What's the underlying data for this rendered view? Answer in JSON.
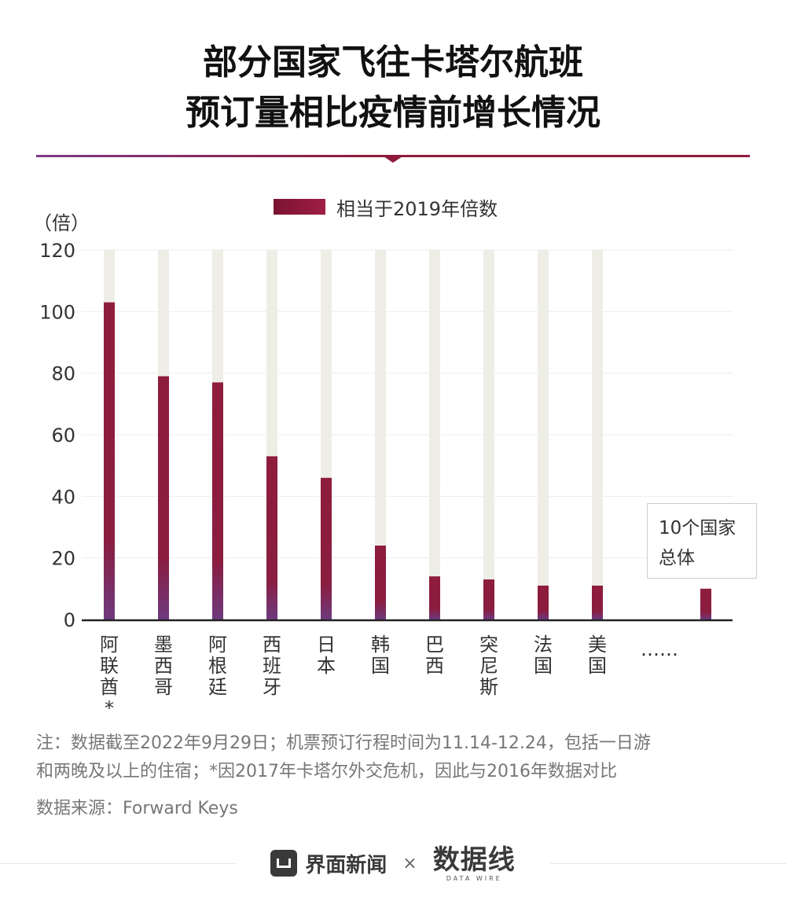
{
  "header": {
    "title_line1": "部分国家飞往卡塔尔航班",
    "title_line2": "预订量相比疫情前增长情况"
  },
  "colors": {
    "bar_fill": "#8e1c3c",
    "bar_base": "#6e3a7e",
    "bar_track": "#eeede6",
    "accent_rule": "#8e1c3c"
  },
  "chart_data": {
    "type": "bar",
    "unit_label": "（倍）",
    "categories": [
      "阿联酋*",
      "墨西哥",
      "阿根廷",
      "西班牙",
      "日本",
      "韩国",
      "巴西",
      "突尼斯",
      "法国",
      "美国",
      "……",
      "10个国家总体"
    ],
    "series": [
      {
        "name": "相当于2019年倍数",
        "values": [
          103,
          79,
          77,
          53,
          46,
          24,
          14,
          13,
          11,
          11,
          null,
          10
        ]
      }
    ],
    "ylim": [
      0,
      120
    ],
    "yticks": [
      "0",
      "20",
      "40",
      "60",
      "80",
      "100",
      "120"
    ],
    "grid": true,
    "legend_position": "top-center",
    "annotation": {
      "text_line1": "10个国家",
      "text_line2": "总体"
    }
  },
  "footnote": {
    "line1": "注：数据截至2022年9月29日；机票预订行程时间为11.14-12.24，包括一日游",
    "line2": "和两晚及以上的住宿；*因2017年卡塔尔外交危机，因此与2016年数据对比"
  },
  "source": "数据来源：Forward Keys",
  "footer": {
    "brand_main": "界面新闻",
    "separator": "×",
    "brand_second": "数据线",
    "brand_second_sub": "DATA WIRE"
  }
}
